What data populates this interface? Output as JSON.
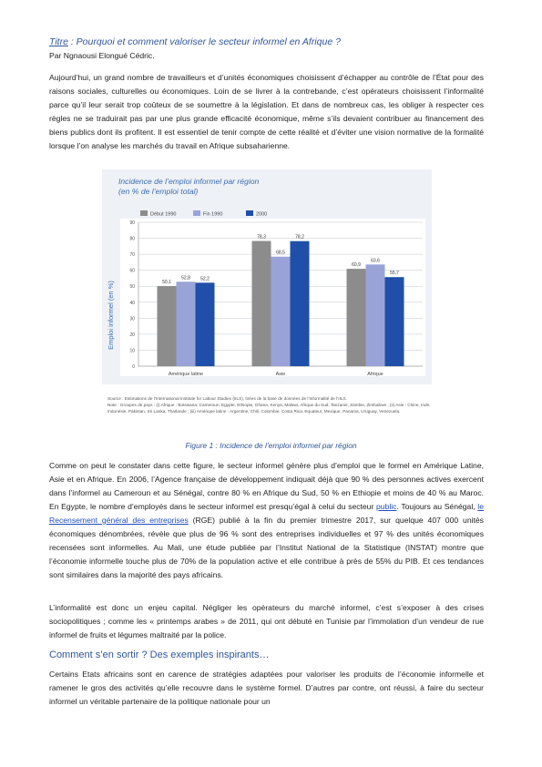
{
  "header": {
    "title_lead": "Titre",
    "title_rest": " : Pourquoi et comment valoriser le secteur informel en Afrique ?",
    "author": "Par  Ngnaousi Elongué Cédric."
  },
  "paragraph1": "Aujourd’hui, un grand nombre de travailleurs et d’unités économiques choisissent d’échapper au contrôle de l’État pour des raisons sociales, culturelles ou économiques. Loin de se livrer à la contrebande, c’est opérateurs choisissent l’informalité parce qu’il leur serait trop coûteux de se soumettre à la législation. Et dans de nombreux cas, les obliger à respecter ces règles ne se traduirait pas par une plus grande efficacité économique, même s’ils devaient contribuer au financement des biens publics dont ils profitent. Il est essentiel de tenir compte de cette réalité et d’éviter une vision normative de la formalité lorsque l’on analyse les marchés du travail en Afrique subsaharienne.",
  "paragraph2": {
    "part1": "Comme on peut le constater dans cette figure, le secteur informel génère plus d’emploi que le formel en Amérique Latine, Asie et en Afrique. En 2006, l’Agence française de développement indiquait déjà que 90 % des personnes actives exercent dans l’informel au Cameroun et au Sénégal, contre 80 % en Afrique du Sud, 50 % en Ethiopie et moins de 40 % au Maroc. En Egypte, le nombre d’employés dans le secteur informel est presqu’égal à celui du secteur ",
    "link1": "public",
    "part2": ". Toujours au Sénégal, ",
    "link2": "le Recensement général des entreprises",
    "part3": " (RGE) publié à la fin du premier trimestre 2017, sur quelque 407 000 unités économiques dénombrées, révèle que plus de 96 % sont des entreprises individuelles et 97 % des unités économiques recensées sont informelles. Au Mali, une étude publiée par l’Institut National de la Statistique (INSTAT) montre que l’économie informelle touche plus de 70% de la population active et elle contribue à près de 55% du PIB. Et ces tendances sont similaires dans la majorité des pays africains."
  },
  "paragraph3": "L’informalité est donc un enjeu capital. Négliger les opérateurs du marché informel, c’est s’exposer à des crises sociopolitiques ; comme les « printemps arabes » de 2011, qui ont débuté en Tunisie par l’immolation d’un vendeur de rue informel de fruits et légumes maltraité par la police.",
  "heading2": "Comment s’en sortir ? Des exemples inspirants…",
  "paragraph4": "Certains Etats africains sont en carence de stratégies adaptées pour valoriser les produits de l’économie informelle et ramener le gros des activités qu’elle recouvre dans le système formel. D’autres par contre, ont réussi, à faire du secteur informel un véritable partenaire de la politique nationale pour un",
  "figure": {
    "caption": "Figure 1 : Incidence de l’emploi informel par région",
    "sources": [
      "Source : Estimations de l’International Institute for Labour Studies (IILS), tirées de la base de données de l’Informalité de l’IILS.",
      "Note : Groupes de pays : (i) Afrique : Botswana, Cameroun, Egypte, Ethiopie, Ghana, Kenya, Malawi, Afrique du Sud, Tanzanie, Zambie, Zimbabwe ; (ii) Asie : Chine, Inde, Indonésie, Pakistan, Sri Lanka, Thaïlande ; (iii) Amérique latine : Argentine, Chili, Colombie, Costa Rica, Equateur, Mexique, Panama, Uruguay, Venezuela."
    ]
  },
  "chart_data": {
    "type": "bar",
    "title": "Incidence de l’emploi informel par région",
    "subtitle": "(en % de l’emploi total)",
    "ylabel": "Emploi informel (en %)",
    "xlabel": "",
    "ylim": [
      0,
      90
    ],
    "yticks": [
      0,
      10,
      20,
      30,
      40,
      50,
      60,
      70,
      80,
      90
    ],
    "grid": true,
    "legend_position": "top-left",
    "categories": [
      "Amérique latine",
      "Asie",
      "Afrique"
    ],
    "series": [
      {
        "name": "Début 1990",
        "color": "#8c8c8c",
        "values": [
          50.1,
          78.3,
          60.9
        ],
        "labels": [
          "50,1",
          "78,3",
          "60,9"
        ]
      },
      {
        "name": "Fin 1990",
        "color": "#9aa3d8",
        "values": [
          52.8,
          68.5,
          63.6
        ],
        "labels": [
          "52,8",
          "68,5",
          "63,6"
        ]
      },
      {
        "name": "2000",
        "color": "#1f4fa8",
        "values": [
          52.2,
          78.2,
          55.7
        ],
        "labels": [
          "52,2",
          "78,2",
          "55,7"
        ]
      }
    ],
    "colors": {
      "axis": "#888888",
      "grid": "#bfc5d0",
      "plot_bg": "#ffffff",
      "title": "#3b6db0"
    }
  }
}
